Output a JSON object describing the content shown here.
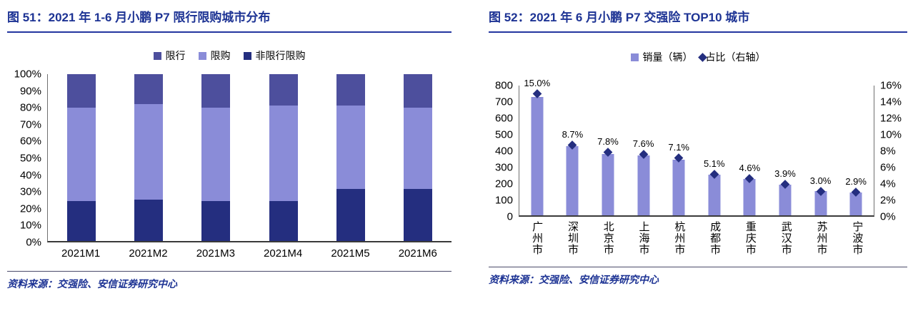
{
  "accent_colors": {
    "title_navy": "#1D3394",
    "dark_navy": "#242E7F",
    "mid_purple": "#4D4F9D",
    "light_purple": "#8A8CD8"
  },
  "left_chart": {
    "title": "图 51：2021 年 1-6 月小鹏 P7 限行限购城市分布",
    "source": "资料来源：交强险、安信证券研究中心",
    "chart_data": {
      "type": "bar",
      "subtype": "stacked-100",
      "title": "2021 年 1-6 月小鹏 P7 限行限购城市分布",
      "categories": [
        "2021M1",
        "2021M2",
        "2021M3",
        "2021M4",
        "2021M5",
        "2021M6"
      ],
      "series": [
        {
          "name": "非限行限购",
          "color": "#242E7F",
          "values": [
            24,
            25,
            24,
            24,
            31,
            31
          ]
        },
        {
          "name": "限购",
          "color": "#8A8CD8",
          "values": [
            56,
            57,
            56,
            57,
            50,
            49
          ]
        },
        {
          "name": "限行",
          "color": "#4D4F9D",
          "values": [
            20,
            18,
            20,
            19,
            19,
            20
          ]
        }
      ],
      "legend": [
        {
          "label": "限行",
          "color": "#4D4F9D",
          "shape": "square"
        },
        {
          "label": "限购",
          "color": "#8A8CD8",
          "shape": "square"
        },
        {
          "label": "非限行限购",
          "color": "#242E7F",
          "shape": "square"
        }
      ],
      "ylim": [
        0,
        100
      ],
      "yticks": [
        "0%",
        "10%",
        "20%",
        "30%",
        "40%",
        "50%",
        "60%",
        "70%",
        "80%",
        "90%",
        "100%"
      ],
      "grid": false,
      "legend_position": "top"
    }
  },
  "right_chart": {
    "title": "图 52：2021 年 6 月小鹏 P7 交强险 TOP10 城市",
    "source": "资料来源：交强险、安信证券研究中心",
    "chart_data": {
      "type": "bar",
      "subtype": "bar-with-scatter",
      "title": "2021 年 6 月小鹏 P7 交强险 TOP10 城市",
      "categories": [
        "广州市",
        "深圳市",
        "北京市",
        "上海市",
        "杭州市",
        "成都市",
        "重庆市",
        "武汉市",
        "苏州市",
        "宁波市"
      ],
      "bar_series": {
        "name": "销量（辆）",
        "color": "#8A8CD8",
        "axis": "left",
        "values": [
          730,
          425,
          380,
          370,
          345,
          250,
          225,
          190,
          148,
          142
        ]
      },
      "marker_series": {
        "name": "占比（右轴）",
        "color": "#242E7F",
        "axis": "right",
        "values": [
          15.0,
          8.7,
          7.8,
          7.6,
          7.1,
          5.1,
          4.6,
          3.9,
          3.0,
          2.9
        ]
      },
      "data_labels": [
        "15.0%",
        "8.7%",
        "7.8%",
        "7.6%",
        "7.1%",
        "5.1%",
        "4.6%",
        "3.9%",
        "3.0%",
        "2.9%"
      ],
      "left_ylim": [
        0,
        800
      ],
      "left_yticks": [
        "0",
        "100",
        "200",
        "300",
        "400",
        "500",
        "600",
        "700",
        "800"
      ],
      "right_ylim": [
        0,
        16
      ],
      "right_yticks": [
        "0%",
        "2%",
        "4%",
        "6%",
        "8%",
        "10%",
        "12%",
        "14%",
        "16%"
      ],
      "legend": [
        {
          "label": "销量（辆）",
          "color": "#8A8CD8",
          "shape": "square"
        },
        {
          "label": "占比（右轴）",
          "color": "#242E7F",
          "shape": "diamond"
        }
      ],
      "grid": false,
      "legend_position": "top"
    }
  }
}
